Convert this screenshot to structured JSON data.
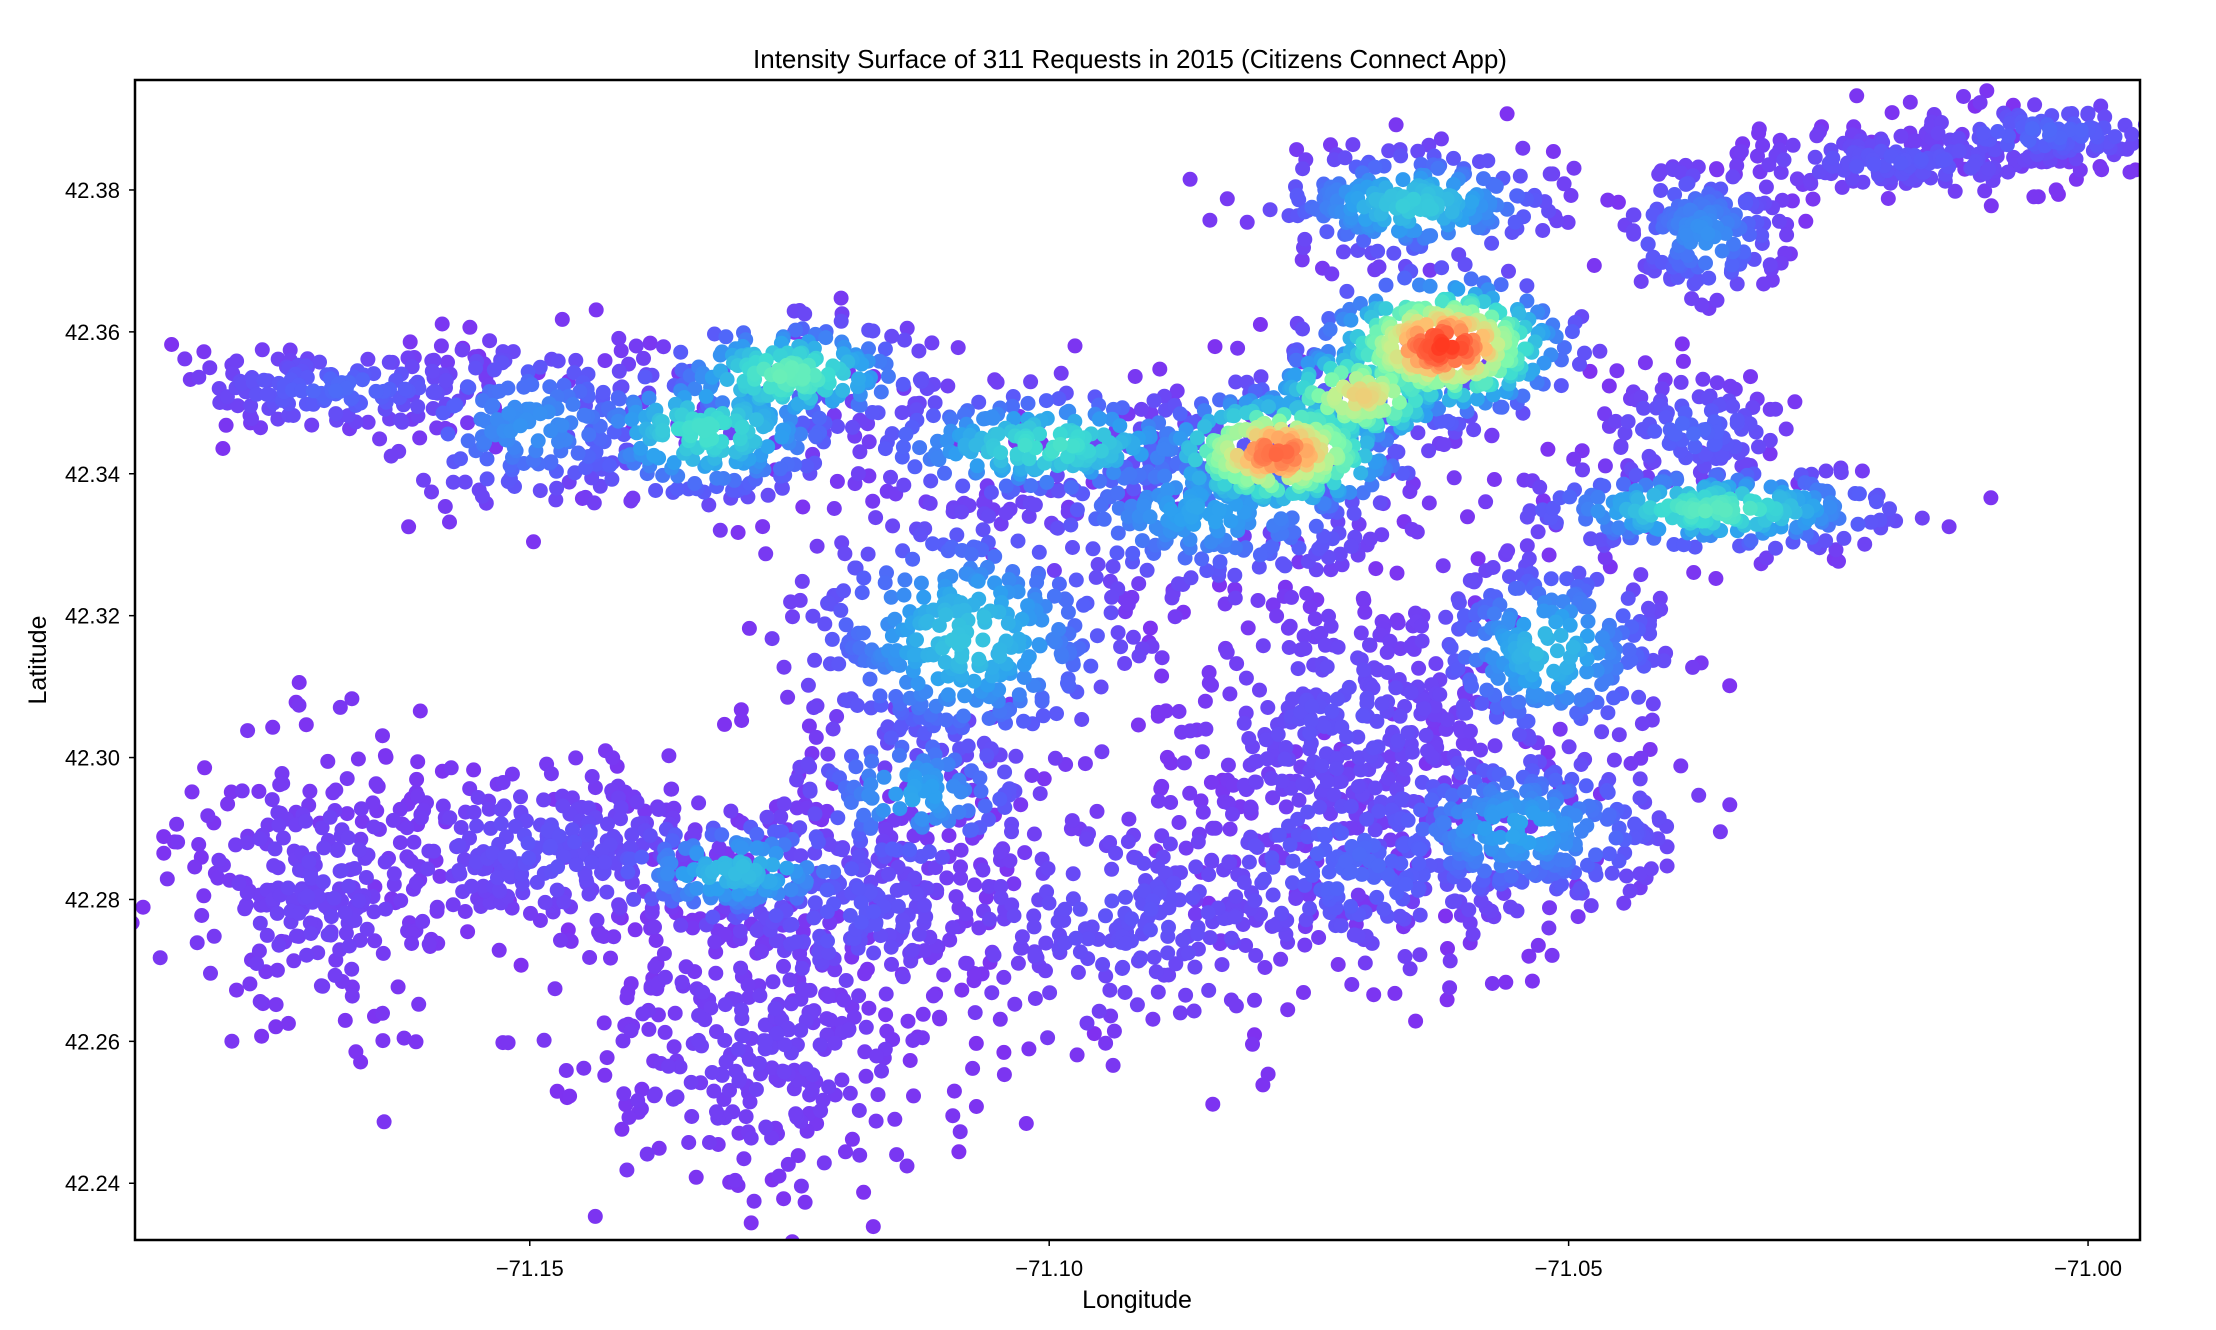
{
  "chart_data": {
    "type": "scatter",
    "title": "Intensity Surface of 311 Requests in 2015 (Citizens Connect App)",
    "xlabel": "Longitude",
    "ylabel": "Latitude",
    "xlim": [
      -71.188,
      -70.995
    ],
    "ylim": [
      42.232,
      42.3955
    ],
    "xticks": [
      -71.15,
      -71.1,
      -71.05,
      -71.0
    ],
    "xtick_labels": [
      "−71.15",
      "−71.10",
      "−71.05",
      "−71.00"
    ],
    "yticks": [
      42.24,
      42.26,
      42.28,
      42.3,
      42.32,
      42.34,
      42.36,
      42.38
    ],
    "ytick_labels": [
      "42.24",
      "42.26",
      "42.28",
      "42.30",
      "42.32",
      "42.34",
      "42.36",
      "42.38"
    ],
    "grid": false,
    "legend": "none",
    "colormap": "rainbow",
    "color_low": "#8030f0",
    "color_high": "#ff2a10",
    "clusters": [
      {
        "lon": -71.17,
        "lat": 42.282,
        "sx": 0.007,
        "sy": 0.01,
        "n": 260,
        "intensity": 0.06
      },
      {
        "lon": -71.148,
        "lat": 42.287,
        "sx": 0.009,
        "sy": 0.006,
        "n": 260,
        "intensity": 0.1
      },
      {
        "lon": -71.128,
        "lat": 42.26,
        "sx": 0.009,
        "sy": 0.011,
        "n": 320,
        "intensity": 0.05
      },
      {
        "lon": -71.12,
        "lat": 42.279,
        "sx": 0.007,
        "sy": 0.007,
        "n": 200,
        "intensity": 0.12
      },
      {
        "lon": -71.092,
        "lat": 42.278,
        "sx": 0.011,
        "sy": 0.009,
        "n": 260,
        "intensity": 0.1
      },
      {
        "lon": -71.07,
        "lat": 42.285,
        "sx": 0.009,
        "sy": 0.008,
        "n": 220,
        "intensity": 0.16
      },
      {
        "lon": -71.168,
        "lat": 42.352,
        "sx": 0.008,
        "sy": 0.003,
        "n": 160,
        "intensity": 0.16
      },
      {
        "lon": -71.15,
        "lat": 42.347,
        "sx": 0.007,
        "sy": 0.006,
        "n": 170,
        "intensity": 0.26
      },
      {
        "lon": -71.133,
        "lat": 42.346,
        "sx": 0.007,
        "sy": 0.005,
        "n": 220,
        "intensity": 0.46
      },
      {
        "lon": -71.125,
        "lat": 42.354,
        "sx": 0.0065,
        "sy": 0.004,
        "n": 200,
        "intensity": 0.52
      },
      {
        "lon": -71.108,
        "lat": 42.317,
        "sx": 0.008,
        "sy": 0.009,
        "n": 380,
        "intensity": 0.38
      },
      {
        "lon": -71.13,
        "lat": 42.284,
        "sx": 0.007,
        "sy": 0.004,
        "n": 170,
        "intensity": 0.36
      },
      {
        "lon": -71.113,
        "lat": 42.295,
        "sx": 0.006,
        "sy": 0.006,
        "n": 140,
        "intensity": 0.3
      },
      {
        "lon": -71.1,
        "lat": 42.344,
        "sx": 0.009,
        "sy": 0.004,
        "n": 240,
        "intensity": 0.46
      },
      {
        "lon": -71.085,
        "lat": 42.335,
        "sx": 0.009,
        "sy": 0.006,
        "n": 280,
        "intensity": 0.3
      },
      {
        "lon": -71.078,
        "lat": 42.343,
        "sx": 0.006,
        "sy": 0.0045,
        "n": 320,
        "intensity": 0.9
      },
      {
        "lon": -71.062,
        "lat": 42.358,
        "sx": 0.006,
        "sy": 0.005,
        "n": 360,
        "intensity": 0.96
      },
      {
        "lon": -71.07,
        "lat": 42.351,
        "sx": 0.005,
        "sy": 0.004,
        "n": 160,
        "intensity": 0.75
      },
      {
        "lon": -71.036,
        "lat": 42.335,
        "sx": 0.009,
        "sy": 0.003,
        "n": 260,
        "intensity": 0.5
      },
      {
        "lon": -71.052,
        "lat": 42.315,
        "sx": 0.006,
        "sy": 0.007,
        "n": 260,
        "intensity": 0.36
      },
      {
        "lon": -71.055,
        "lat": 42.29,
        "sx": 0.008,
        "sy": 0.006,
        "n": 320,
        "intensity": 0.3
      },
      {
        "lon": -71.072,
        "lat": 42.305,
        "sx": 0.008,
        "sy": 0.01,
        "n": 300,
        "intensity": 0.1
      },
      {
        "lon": -71.065,
        "lat": 42.378,
        "sx": 0.007,
        "sy": 0.004,
        "n": 240,
        "intensity": 0.4
      },
      {
        "lon": -71.037,
        "lat": 42.374,
        "sx": 0.004,
        "sy": 0.005,
        "n": 160,
        "intensity": 0.26
      },
      {
        "lon": -71.018,
        "lat": 42.384,
        "sx": 0.009,
        "sy": 0.0025,
        "n": 160,
        "intensity": 0.12
      },
      {
        "lon": -71.004,
        "lat": 42.388,
        "sx": 0.007,
        "sy": 0.0025,
        "n": 140,
        "intensity": 0.16
      },
      {
        "lon": -71.038,
        "lat": 42.346,
        "sx": 0.005,
        "sy": 0.004,
        "n": 110,
        "intensity": 0.16
      }
    ]
  }
}
